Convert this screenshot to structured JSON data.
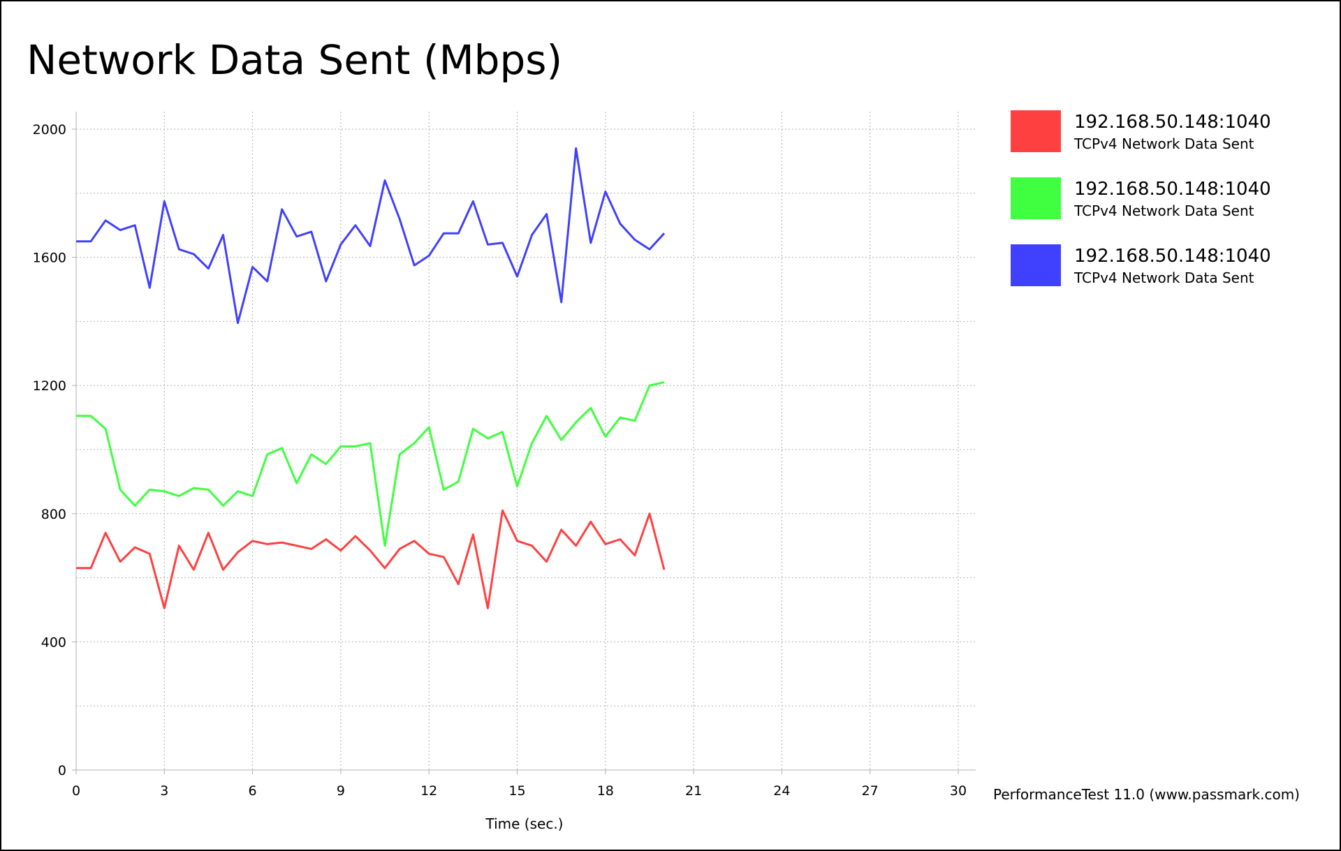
{
  "chart_data": {
    "type": "line",
    "title": "Network Data Sent (Mbps)",
    "xlabel": "Time (sec.)",
    "ylabel": "",
    "xlim": [
      0,
      30
    ],
    "ylim": [
      0,
      2000
    ],
    "x_ticks": [
      0,
      3,
      6,
      9,
      12,
      15,
      18,
      21,
      24,
      27,
      30
    ],
    "y_ticks": [
      0,
      400,
      800,
      1200,
      1600,
      2000
    ],
    "grid": true,
    "legend_position": "right",
    "x": [
      0,
      0.5,
      1,
      1.5,
      2,
      2.5,
      3,
      3.5,
      4,
      4.5,
      5,
      5.5,
      6,
      6.5,
      7,
      7.5,
      8,
      8.5,
      9,
      9.5,
      10,
      10.5,
      11,
      11.5,
      12,
      12.5,
      13,
      13.5,
      14,
      14.5,
      15,
      15.5,
      16,
      16.5,
      17,
      17.5,
      18,
      18.5,
      19,
      19.5,
      20
    ],
    "series": [
      {
        "name": "192.168.50.148:1040",
        "description": "TCPv4 Network Data Sent",
        "color": "#ff4040",
        "values": [
          630,
          630,
          740,
          650,
          695,
          675,
          505,
          700,
          625,
          740,
          625,
          680,
          715,
          705,
          710,
          700,
          690,
          720,
          685,
          730,
          685,
          630,
          690,
          715,
          675,
          665,
          580,
          735,
          505,
          810,
          715,
          700,
          650,
          750,
          700,
          775,
          705,
          720,
          670,
          800,
          625
        ]
      },
      {
        "name": "192.168.50.148:1040",
        "description": "TCPv4 Network Data Sent",
        "color": "#40ff40",
        "values": [
          1105,
          1105,
          1065,
          875,
          825,
          875,
          870,
          855,
          880,
          875,
          825,
          870,
          855,
          985,
          1005,
          895,
          985,
          955,
          1010,
          1010,
          1020,
          700,
          985,
          1020,
          1070,
          875,
          900,
          1065,
          1035,
          1055,
          885,
          1020,
          1105,
          1030,
          1085,
          1130,
          1040,
          1100,
          1090,
          1200,
          1210
        ]
      },
      {
        "name": "192.168.50.148:1040",
        "description": "TCPv4 Network Data Sent",
        "color": "#4040ff",
        "values": [
          1650,
          1650,
          1715,
          1685,
          1700,
          1505,
          1775,
          1625,
          1610,
          1565,
          1670,
          1395,
          1570,
          1525,
          1750,
          1665,
          1680,
          1525,
          1640,
          1700,
          1635,
          1840,
          1720,
          1575,
          1605,
          1675,
          1675,
          1775,
          1640,
          1645,
          1540,
          1670,
          1735,
          1460,
          1940,
          1645,
          1805,
          1705,
          1655,
          1625,
          1675
        ]
      }
    ]
  },
  "footer": "PerformanceTest 11.0 (www.passmark.com)"
}
